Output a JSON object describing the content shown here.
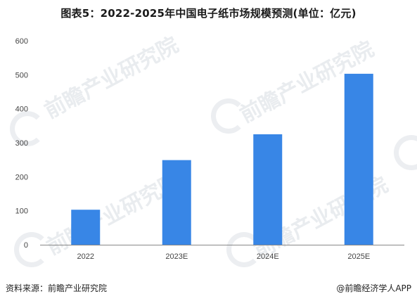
{
  "chart_data": {
    "type": "bar",
    "title": "图表5：2022-2025年中国电子纸市场规模预测(单位：亿元)",
    "categories": [
      "2022",
      "2023E",
      "2024E",
      "2025E"
    ],
    "values": [
      103,
      249,
      325,
      503
    ],
    "ylim": [
      0,
      600
    ],
    "yticks": [
      0,
      100,
      200,
      300,
      400,
      500,
      600
    ],
    "xlabel": "",
    "ylabel": "",
    "grid": false,
    "bar_color": "#3886e6"
  },
  "footer": {
    "source": "资料来源：前瞻产业研究院",
    "brand": "@前瞻经济学人APP"
  },
  "watermark": "前瞻产业研究院"
}
